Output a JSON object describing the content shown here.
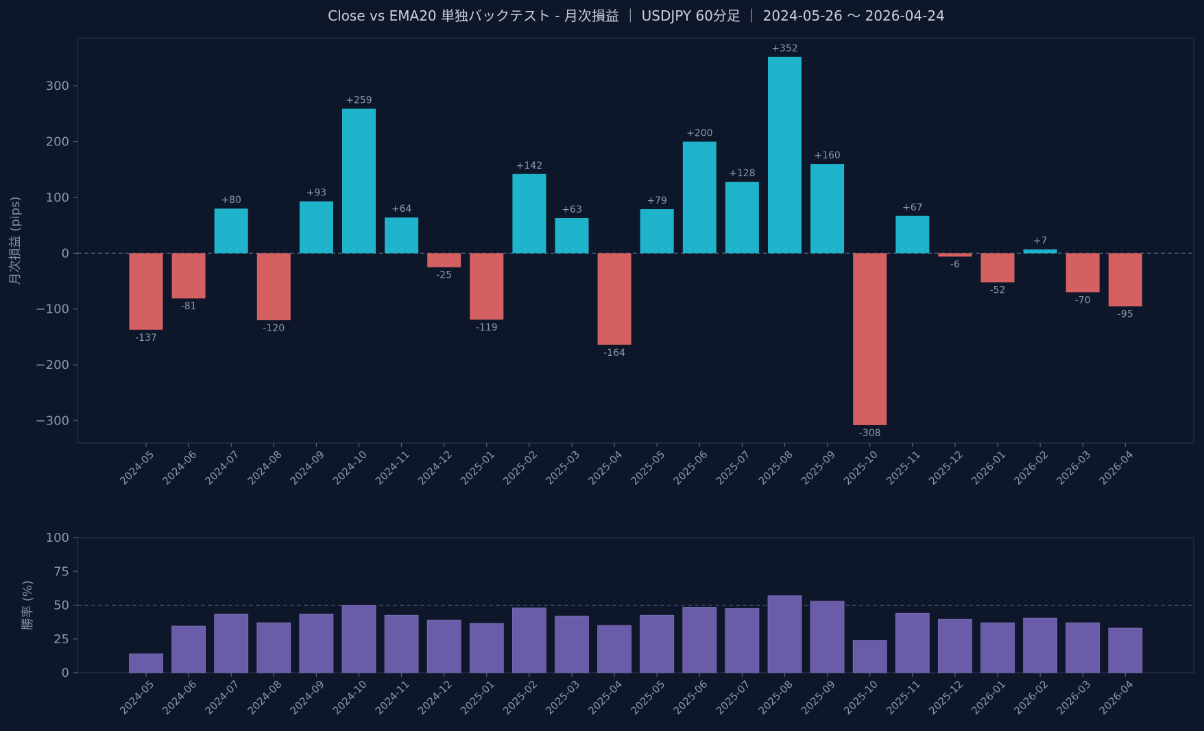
{
  "chart_data": [
    {
      "type": "bar",
      "title": "Close vs EMA20 単独バックテスト - 月次損益 ｜ USDJPY 60分足 ｜ 2024-05-26 〜 2026-04-24",
      "ylabel": "月次損益 (pips)",
      "xlabel": "",
      "ylim": [
        -340,
        385
      ],
      "yticks": [
        -300,
        -200,
        -100,
        0,
        100,
        200,
        300
      ],
      "ytick_labels": [
        "−300",
        "−200",
        "−100",
        "0",
        "100",
        "200",
        "300"
      ],
      "categories": [
        "2024-05",
        "2024-06",
        "2024-07",
        "2024-08",
        "2024-09",
        "2024-10",
        "2024-11",
        "2024-12",
        "2025-01",
        "2025-02",
        "2025-03",
        "2025-04",
        "2025-05",
        "2025-06",
        "2025-07",
        "2025-08",
        "2025-09",
        "2025-10",
        "2025-11",
        "2025-12",
        "2026-01",
        "2026-02",
        "2026-03",
        "2026-04"
      ],
      "values": [
        -137,
        -81,
        80,
        -120,
        93,
        259,
        64,
        -25,
        -119,
        142,
        63,
        -164,
        79,
        200,
        128,
        352,
        160,
        -308,
        67,
        -6,
        -52,
        7,
        -70,
        -95
      ],
      "data_labels": [
        "-137",
        "-81",
        "+80",
        "-120",
        "+93",
        "+259",
        "+64",
        "-25",
        "-119",
        "+142",
        "+63",
        "-164",
        "+79",
        "+200",
        "+128",
        "+352",
        "+160",
        "-308",
        "+67",
        "-6",
        "-52",
        "+7",
        "-70",
        "-95"
      ],
      "reference_line": 0,
      "colors": {
        "positive": "#1fb4cc",
        "negative": "#d46062"
      }
    },
    {
      "type": "bar",
      "title": "",
      "ylabel": "勝率 (%)",
      "xlabel": "",
      "ylim": [
        0,
        100
      ],
      "yticks": [
        0,
        25,
        50,
        75,
        100
      ],
      "ytick_labels": [
        "0",
        "25",
        "50",
        "75",
        "100"
      ],
      "categories": [
        "2024-05",
        "2024-06",
        "2024-07",
        "2024-08",
        "2024-09",
        "2024-10",
        "2024-11",
        "2024-12",
        "2025-01",
        "2025-02",
        "2025-03",
        "2025-04",
        "2025-05",
        "2025-06",
        "2025-07",
        "2025-08",
        "2025-09",
        "2025-10",
        "2025-11",
        "2025-12",
        "2026-01",
        "2026-02",
        "2026-03",
        "2026-04"
      ],
      "values": [
        14,
        34.5,
        43.5,
        37,
        43.5,
        50,
        42.5,
        39,
        36.5,
        48,
        42,
        35,
        42.5,
        48.5,
        47.5,
        57,
        53,
        24,
        44,
        39.5,
        37,
        40.5,
        37,
        33
      ],
      "reference_line": 50,
      "colors": {
        "bar": "#6a5ca8"
      }
    }
  ],
  "colors": {
    "background": "#0e1729",
    "frame": "#253349",
    "reference_line": "#4a5a72",
    "text": "#8a97aa"
  }
}
